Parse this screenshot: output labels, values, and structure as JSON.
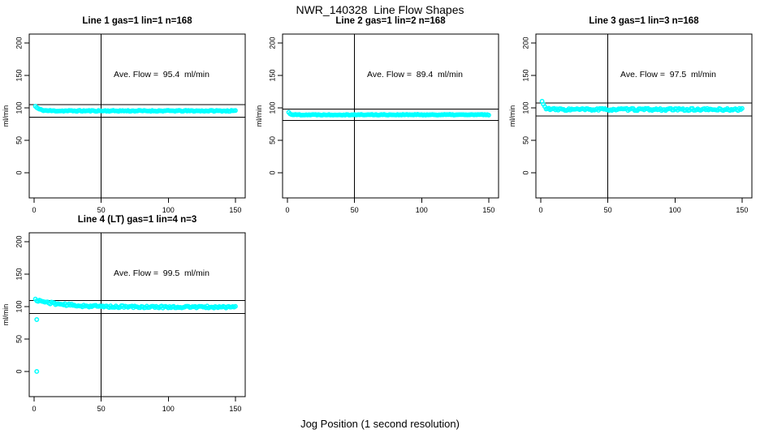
{
  "figure": {
    "title": "NWR_140328  Line Flow Shapes",
    "xlabel": "Jog Position (1 second resolution)",
    "marker_color": "#00FFFF",
    "axis_color": "#000000"
  },
  "chart_data": [
    {
      "type": "scatter",
      "title": "Line 1 gas=1 lin=1 n=168",
      "annotation": "Ave. Flow =  95.4  ml/min",
      "annotation_xy": [
        95,
        150
      ],
      "ave_flow_ml_min": 95.4,
      "n": 168,
      "ylabel": "ml/min",
      "x_ticks": [
        0,
        50,
        100,
        150
      ],
      "y_ticks": [
        0,
        50,
        100,
        150,
        200
      ],
      "xlim": [
        -3.6,
        157.3
      ],
      "ylim": [
        -38.8,
        213.8
      ],
      "vline_x": 50,
      "hlines": [
        104.9,
        85.9
      ],
      "series": [
        {
          "name": "flow",
          "x_start": 1,
          "x_end": 150,
          "step": 1,
          "y_start": 102.5,
          "y_settle": 95.4,
          "decay": 0.35,
          "noise_amp": 0.8,
          "seed": 11
        }
      ],
      "outlier_points": []
    },
    {
      "type": "scatter",
      "title": "Line 2 gas=1 lin=2 n=168",
      "annotation": "Ave. Flow =  89.4  ml/min",
      "annotation_xy": [
        95,
        150
      ],
      "ave_flow_ml_min": 89.4,
      "n": 168,
      "ylabel": "ml/min",
      "x_ticks": [
        0,
        50,
        100,
        150
      ],
      "y_ticks": [
        0,
        50,
        100,
        150,
        200
      ],
      "xlim": [
        -3.6,
        157.3
      ],
      "ylim": [
        -38.8,
        213.8
      ],
      "vline_x": 50,
      "hlines": [
        98.3,
        80.5
      ],
      "series": [
        {
          "name": "flow",
          "x_start": 1,
          "x_end": 150,
          "step": 1,
          "y_start": 93,
          "y_settle": 89.4,
          "decay": 0.8,
          "noise_amp": 0.6,
          "seed": 22
        }
      ],
      "outlier_points": []
    },
    {
      "type": "scatter",
      "title": "Line 3 gas=1 lin=3 n=168",
      "annotation": "Ave. Flow =  97.5  ml/min",
      "annotation_xy": [
        95,
        150
      ],
      "ave_flow_ml_min": 97.5,
      "n": 168,
      "ylabel": "ml/min",
      "x_ticks": [
        0,
        50,
        100,
        150
      ],
      "y_ticks": [
        0,
        50,
        100,
        150,
        200
      ],
      "xlim": [
        -3.6,
        157.3
      ],
      "ylim": [
        -38.8,
        213.8
      ],
      "vline_x": 50,
      "hlines": [
        107.3,
        87.8
      ],
      "series": [
        {
          "name": "flow",
          "x_start": 1,
          "x_end": 150,
          "step": 1,
          "y_start": 110,
          "y_settle": 97.5,
          "decay": 0.55,
          "noise_amp": 1.7,
          "seed": 33
        }
      ],
      "outlier_points": []
    },
    {
      "type": "scatter",
      "title": "Line 4 (LT) gas=1 lin=4 n=3",
      "annotation": "Ave. Flow =  99.5  ml/min",
      "annotation_xy": [
        95,
        150
      ],
      "ave_flow_ml_min": 99.5,
      "n": 3,
      "ylabel": "ml/min",
      "x_ticks": [
        0,
        50,
        100,
        150
      ],
      "y_ticks": [
        0,
        50,
        100,
        150,
        200
      ],
      "xlim": [
        -3.6,
        157.3
      ],
      "ylim": [
        -38.8,
        213.8
      ],
      "vline_x": 50,
      "hlines": [
        109.5,
        89.6
      ],
      "series": [
        {
          "name": "flow",
          "x_start": 1,
          "x_end": 150,
          "step": 1,
          "y_start": 110.5,
          "y_settle": 99.3,
          "decay": 0.05,
          "noise_amp": 1.6,
          "seed": 44
        }
      ],
      "outlier_points": [
        {
          "x": 2,
          "y": 80
        },
        {
          "x": 2,
          "y": 0
        }
      ]
    }
  ]
}
